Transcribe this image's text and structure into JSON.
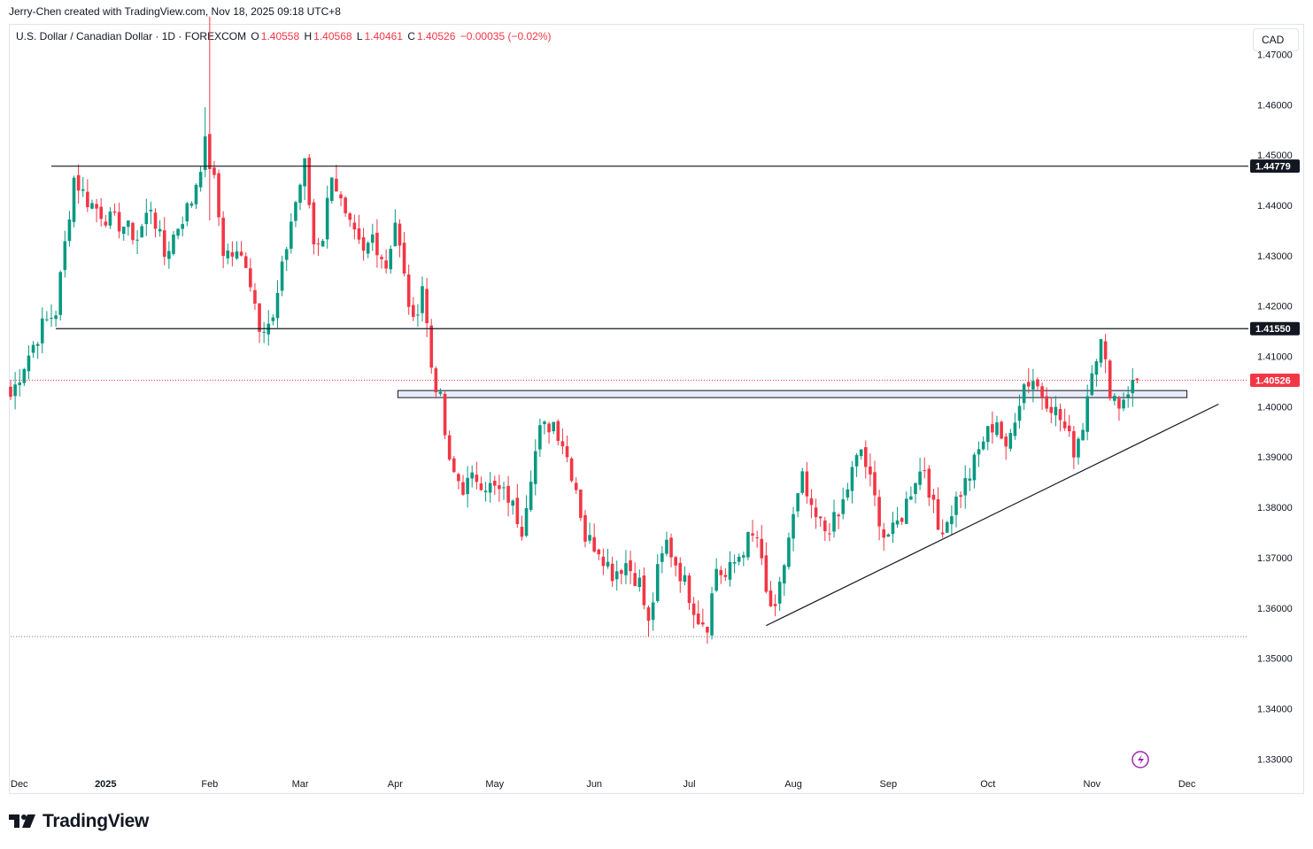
{
  "credit": "Jerry-Chen created with TradingView.com, Nov 18, 2025 09:18 UTC+8",
  "symbol": {
    "name": "U.S. Dollar / Canadian Dollar · 1D · FOREXCOM",
    "open_label": "O",
    "open": "1.40558",
    "high_label": "H",
    "high": "1.40568",
    "low_label": "L",
    "low": "1.40461",
    "close_label": "C",
    "close": "1.40526",
    "change": "−0.00035 (−0.02%)"
  },
  "currency": "CAD",
  "brand": "TradingView",
  "colors": {
    "up": "#089981",
    "down": "#f23645",
    "line": "#131722",
    "zone": "#e8ecf9",
    "zone_border": "#131722",
    "price_tag": "#f23645",
    "level_tag": "#131722",
    "alert": "#9c27b0"
  },
  "chart_data": {
    "type": "candlestick",
    "title": "U.S. Dollar / Canadian Dollar · 1D · FOREXCOM",
    "ylim": [
      1.325,
      1.477
    ],
    "y_ticks": [
      "1.47000",
      "1.46000",
      "1.45000",
      "1.44000",
      "1.43000",
      "1.42000",
      "1.41000",
      "1.40000",
      "1.39000",
      "1.38000",
      "1.37000",
      "1.36000",
      "1.35000",
      "1.34000",
      "1.33000"
    ],
    "x_labels": [
      {
        "label": "Dec",
        "i": 0
      },
      {
        "label": "2025",
        "i": 21
      },
      {
        "label": "Feb",
        "i": 44
      },
      {
        "label": "Mar",
        "i": 64
      },
      {
        "label": "Apr",
        "i": 85
      },
      {
        "label": "May",
        "i": 107
      },
      {
        "label": "Jun",
        "i": 129
      },
      {
        "label": "Jul",
        "i": 150
      },
      {
        "label": "Aug",
        "i": 173
      },
      {
        "label": "Sep",
        "i": 194
      },
      {
        "label": "Oct",
        "i": 216
      },
      {
        "label": "Nov",
        "i": 239
      },
      {
        "label": "Dec",
        "i": 260
      }
    ],
    "resistance_levels": [
      {
        "value": 1.44779,
        "label": "1.44779",
        "from_i": 9
      },
      {
        "value": 1.4155,
        "label": "1.41550",
        "from_i": 10
      }
    ],
    "current_price": {
      "value": 1.40526,
      "label": "1.40526"
    },
    "support_zone": {
      "from_i": 86,
      "to_i": 260,
      "low": 1.4018,
      "high": 1.4032
    },
    "low_reference": {
      "value": 1.3543
    },
    "trendline": {
      "from": {
        "i": 167,
        "price": 1.3565
      },
      "to": {
        "i": 267,
        "price": 1.4005
      }
    },
    "control_points": [
      [
        0,
        1.402
      ],
      [
        3,
        1.4085
      ],
      [
        7,
        1.416
      ],
      [
        10,
        1.419
      ],
      [
        14,
        1.4455
      ],
      [
        17,
        1.441
      ],
      [
        22,
        1.437
      ],
      [
        25,
        1.436
      ],
      [
        28,
        1.4335
      ],
      [
        31,
        1.44
      ],
      [
        34,
        1.43
      ],
      [
        37,
        1.436
      ],
      [
        40,
        1.441
      ],
      [
        43,
        1.452
      ],
      [
        45,
        1.4445
      ],
      [
        47,
        1.431
      ],
      [
        52,
        1.429
      ],
      [
        55,
        1.4165
      ],
      [
        58,
        1.417
      ],
      [
        62,
        1.437
      ],
      [
        65,
        1.448
      ],
      [
        67,
        1.4325
      ],
      [
        69,
        1.434
      ],
      [
        71,
        1.447
      ],
      [
        74,
        1.437
      ],
      [
        78,
        1.43
      ],
      [
        80,
        1.434
      ],
      [
        83,
        1.428
      ],
      [
        85,
        1.437
      ],
      [
        87,
        1.4255
      ],
      [
        89,
        1.416
      ],
      [
        91,
        1.4245
      ],
      [
        93,
        1.408
      ],
      [
        95,
        1.401
      ],
      [
        97,
        1.388
      ],
      [
        100,
        1.384
      ],
      [
        103,
        1.386
      ],
      [
        106,
        1.384
      ],
      [
        110,
        1.382
      ],
      [
        113,
        1.376
      ],
      [
        115,
        1.387
      ],
      [
        117,
        1.395
      ],
      [
        120,
        1.397
      ],
      [
        122,
        1.393
      ],
      [
        125,
        1.384
      ],
      [
        127,
        1.374
      ],
      [
        130,
        1.372
      ],
      [
        133,
        1.367
      ],
      [
        136,
        1.369
      ],
      [
        139,
        1.365
      ],
      [
        141,
        1.3565
      ],
      [
        143,
        1.367
      ],
      [
        145,
        1.373
      ],
      [
        147,
        1.369
      ],
      [
        149,
        1.365
      ],
      [
        152,
        1.358
      ],
      [
        154,
        1.357
      ],
      [
        156,
        1.368
      ],
      [
        158,
        1.366
      ],
      [
        160,
        1.369
      ],
      [
        163,
        1.3735
      ],
      [
        165,
        1.374
      ],
      [
        167,
        1.3625
      ],
      [
        169,
        1.3585
      ],
      [
        172,
        1.374
      ],
      [
        175,
        1.3855
      ],
      [
        177,
        1.3785
      ],
      [
        180,
        1.3755
      ],
      [
        183,
        1.378
      ],
      [
        186,
        1.387
      ],
      [
        188,
        1.3915
      ],
      [
        190,
        1.385
      ],
      [
        193,
        1.3745
      ],
      [
        195,
        1.375
      ],
      [
        197,
        1.3785
      ],
      [
        200,
        1.386
      ],
      [
        202,
        1.388
      ],
      [
        205,
        1.3755
      ],
      [
        207,
        1.3775
      ],
      [
        209,
        1.3815
      ],
      [
        212,
        1.3865
      ],
      [
        215,
        1.3935
      ],
      [
        218,
        1.3975
      ],
      [
        220,
        1.3905
      ],
      [
        222,
        1.3985
      ],
      [
        224,
        1.4045
      ],
      [
        226,
        1.4055
      ],
      [
        228,
        1.4025
      ],
      [
        230,
        1.4005
      ],
      [
        232,
        1.3975
      ],
      [
        235,
        1.3915
      ],
      [
        237,
        1.3965
      ],
      [
        239,
        1.4085
      ],
      [
        241,
        1.4125
      ],
      [
        243,
        1.4035
      ],
      [
        245,
        1.4005
      ],
      [
        247,
        1.4035
      ],
      [
        249,
        1.4053
      ]
    ]
  }
}
